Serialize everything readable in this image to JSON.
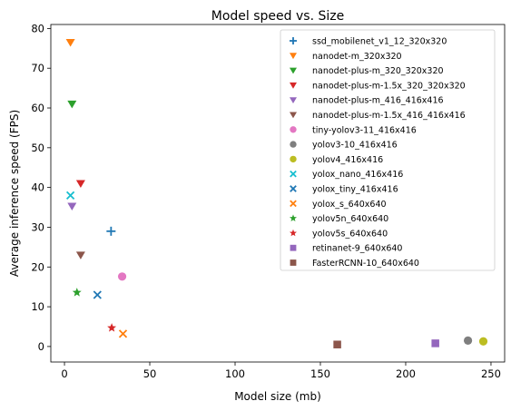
{
  "chart_data": {
    "type": "scatter",
    "title": "Model speed vs. Size",
    "xlabel": "Model size (mb)",
    "ylabel": "Average inference speed (FPS)",
    "xlim": [
      -8,
      258
    ],
    "ylim": [
      -3.9,
      81
    ],
    "xticks": [
      0,
      50,
      100,
      150,
      200,
      250
    ],
    "yticks": [
      0,
      10,
      20,
      30,
      40,
      50,
      60,
      70,
      80
    ],
    "grid": false,
    "legend_position": "top-right",
    "series": [
      {
        "name": "ssd_mobilenet_v1_12_320x320",
        "marker": "plus",
        "color": "#1f77b4",
        "x": [
          27.3
        ],
        "y": [
          29.0
        ]
      },
      {
        "name": "nanodet-m_320x320",
        "marker": "triangle-down",
        "color": "#ff7f0e",
        "x": [
          3.5
        ],
        "y": [
          76.5
        ]
      },
      {
        "name": "nanodet-plus-m_320_320x320",
        "marker": "triangle-down",
        "color": "#2ca02c",
        "x": [
          4.4
        ],
        "y": [
          61.0
        ]
      },
      {
        "name": "nanodet-plus-m-1.5x_320_320x320",
        "marker": "triangle-down",
        "color": "#d62728",
        "x": [
          9.5
        ],
        "y": [
          41.0
        ]
      },
      {
        "name": "nanodet-plus-m_416_416x416",
        "marker": "triangle-down",
        "color": "#9467bd",
        "x": [
          4.4
        ],
        "y": [
          35.3
        ]
      },
      {
        "name": "nanodet-plus-m-1.5x_416_416x416",
        "marker": "triangle-down",
        "color": "#8c564b",
        "x": [
          9.5
        ],
        "y": [
          23.0
        ]
      },
      {
        "name": "tiny-yolov3-11_416x416",
        "marker": "circle",
        "color": "#e377c2",
        "x": [
          33.8
        ],
        "y": [
          17.6
        ]
      },
      {
        "name": "yolov3-10_416x416",
        "marker": "circle",
        "color": "#7f7f7f",
        "x": [
          236.5
        ],
        "y": [
          1.5
        ]
      },
      {
        "name": "yolov4_416x416",
        "marker": "circle",
        "color": "#bcbd22",
        "x": [
          245.5
        ],
        "y": [
          1.3
        ]
      },
      {
        "name": "yolox_nano_416x416",
        "marker": "x",
        "color": "#17becf",
        "x": [
          3.5
        ],
        "y": [
          38.0
        ]
      },
      {
        "name": "yolox_tiny_416x416",
        "marker": "x",
        "color": "#1f77b4",
        "x": [
          19.3
        ],
        "y": [
          13.0
        ]
      },
      {
        "name": "yolox_s_640x640",
        "marker": "x",
        "color": "#ff7f0e",
        "x": [
          34.3
        ],
        "y": [
          3.2
        ]
      },
      {
        "name": "yolov5n_640x640",
        "marker": "star",
        "color": "#2ca02c",
        "x": [
          7.3
        ],
        "y": [
          13.6
        ]
      },
      {
        "name": "yolov5s_640x640",
        "marker": "star",
        "color": "#d62728",
        "x": [
          27.7
        ],
        "y": [
          4.7
        ]
      },
      {
        "name": "retinanet-9_640x640",
        "marker": "square",
        "color": "#9467bd",
        "x": [
          217.4
        ],
        "y": [
          0.8
        ]
      },
      {
        "name": "FasterRCNN-10_640x640",
        "marker": "square",
        "color": "#8c564b",
        "x": [
          159.9
        ],
        "y": [
          0.5
        ]
      }
    ]
  }
}
